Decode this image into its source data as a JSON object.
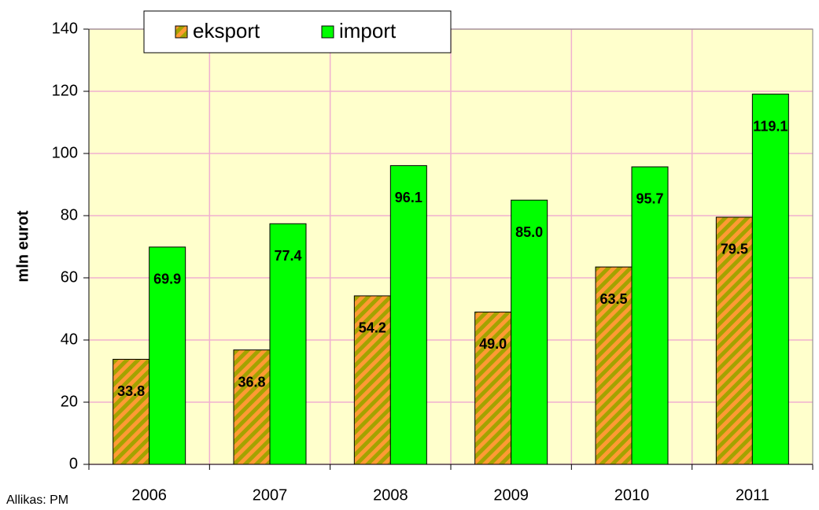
{
  "chart_data": {
    "type": "bar",
    "y_axis_label": "mln eurot",
    "source": "Allikas: PM",
    "categories": [
      "2006",
      "2007",
      "2008",
      "2009",
      "2010",
      "2011"
    ],
    "series": [
      {
        "name": "eksport",
        "color": "#a3a300",
        "hatch_color": "#ff9a33",
        "values": [
          33.8,
          36.8,
          54.2,
          49.0,
          63.5,
          79.5
        ],
        "value_labels": [
          "33.8",
          "36.8",
          "54.2",
          "49.0",
          "63.5",
          "79.5"
        ]
      },
      {
        "name": "import",
        "color": "#00ff00",
        "values": [
          69.9,
          77.4,
          96.1,
          85.0,
          95.7,
          119.1
        ],
        "value_labels": [
          "69.9",
          "77.4",
          "96.1",
          "85.0",
          "95.7",
          "119.1"
        ]
      }
    ],
    "ylim": [
      0,
      140
    ],
    "yticks": [
      0,
      20,
      40,
      60,
      80,
      100,
      120,
      140
    ],
    "grid": true,
    "grid_color": "#f0b0d0",
    "plot_background": "#ffffcc",
    "legend": "top"
  }
}
